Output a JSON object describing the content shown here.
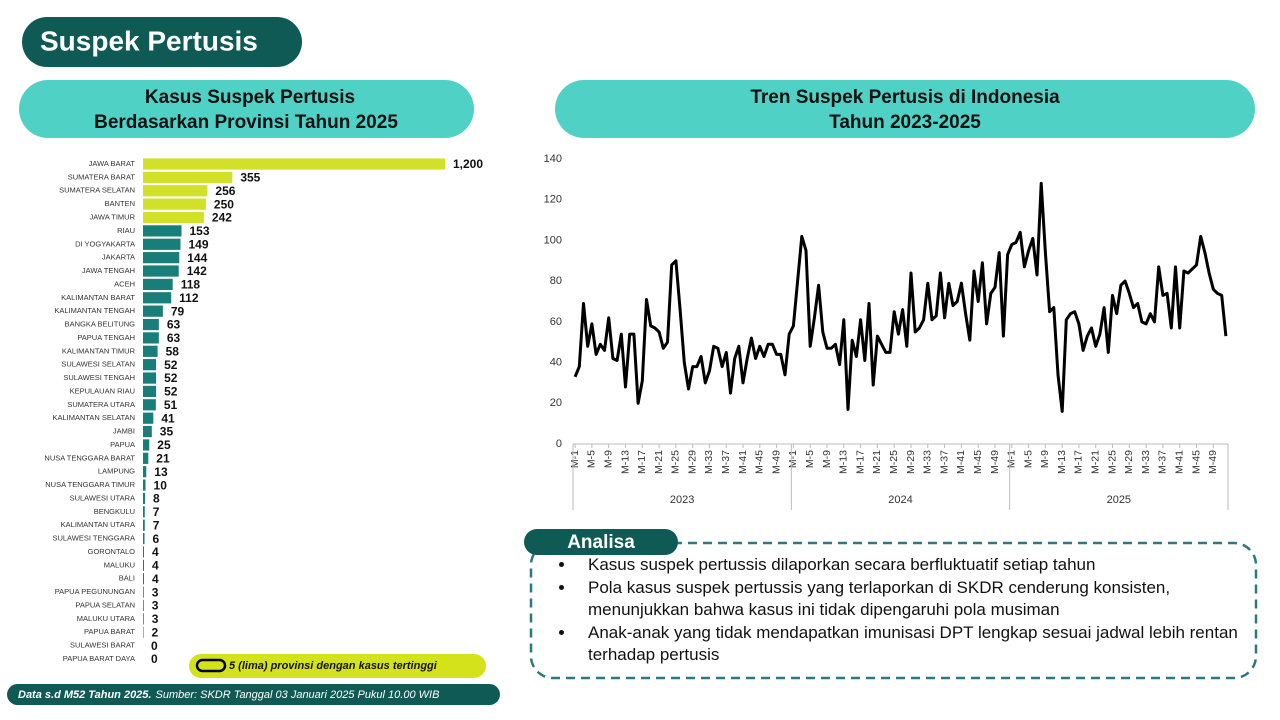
{
  "header": {
    "title": "Suspek Pertusis"
  },
  "chart_data": [
    {
      "type": "bar",
      "orientation": "horizontal",
      "title": "Kasus Suspek Pertusis",
      "subtitle": "Berdasarkan Provinsi Tahun 2025",
      "categories": [
        "JAWA BARAT",
        "SUMATERA BARAT",
        "SUMATERA SELATAN",
        "BANTEN",
        "JAWA TIMUR",
        "RIAU",
        "DI YOGYAKARTA",
        "JAKARTA",
        "JAWA TENGAH",
        "ACEH",
        "KALIMANTAN BARAT",
        "KALIMANTAN TENGAH",
        "BANGKA BELITUNG",
        "PAPUA TENGAH",
        "KALIMANTAN TIMUR",
        "SULAWESI SELATAN",
        "SULAWESI TENGAH",
        "KEPULAUAN RIAU",
        "SUMATERA UTARA",
        "KALIMANTAN SELATAN",
        "JAMBI",
        "PAPUA",
        "NUSA TENGGARA BARAT",
        "LAMPUNG",
        "NUSA TENGGARA TIMUR",
        "SULAWESI UTARA",
        "BENGKULU",
        "KALIMANTAN UTARA",
        "SULAWESI TENGGARA",
        "GORONTALO",
        "MALUKU",
        "BALI",
        "PAPUA PEGUNUNGAN",
        "PAPUA SELATAN",
        "MALUKU UTARA",
        "PAPUA BARAT",
        "SULAWESI BARAT",
        "PAPUA BARAT DAYA"
      ],
      "values": [
        1200,
        355,
        256,
        250,
        242,
        153,
        149,
        144,
        142,
        118,
        112,
        79,
        63,
        63,
        58,
        52,
        52,
        52,
        51,
        41,
        35,
        25,
        21,
        13,
        10,
        8,
        7,
        7,
        6,
        4,
        4,
        4,
        3,
        3,
        3,
        2,
        0,
        0
      ],
      "value_labels": [
        "1,200",
        "355",
        "256",
        "250",
        "242",
        "153",
        "149",
        "144",
        "142",
        "118",
        "112",
        "79",
        "63",
        "63",
        "58",
        "52",
        "52",
        "52",
        "51",
        "41",
        "35",
        "25",
        "21",
        "13",
        "10",
        "8",
        "7",
        "7",
        "6",
        "4",
        "4",
        "4",
        "3",
        "3",
        "3",
        "2",
        "0",
        "0"
      ],
      "colors": [
        "#d2e02a",
        "#d2e02a",
        "#d2e02a",
        "#d2e02a",
        "#d2e02a",
        "#177e79",
        "#177e79",
        "#177e79",
        "#177e79",
        "#177e79",
        "#177e79",
        "#177e79",
        "#177e79",
        "#177e79",
        "#177e79",
        "#177e79",
        "#177e79",
        "#177e79",
        "#177e79",
        "#177e79",
        "#177e79",
        "#177e79",
        "#177e79",
        "#177e79",
        "#177e79",
        "#177e79",
        "#177e79",
        "#177e79",
        "#177e79",
        "#177e79",
        "#177e79",
        "#177e79",
        "#177e79",
        "#177e79",
        "#177e79",
        "#177e79",
        "#177e79",
        "#177e79"
      ],
      "annotation": "5 (lima) provinsi dengan kasus tertinggi"
    },
    {
      "type": "line",
      "title": "Tren Suspek Pertusis di Indonesia",
      "subtitle": "Tahun 2023-2025",
      "color": "#000000",
      "x_groups": [
        "2023",
        "2024",
        "2025"
      ],
      "categories": [
        "M-1",
        null,
        null,
        null,
        "M-5",
        null,
        null,
        null,
        "M-9",
        null,
        null,
        null,
        "M-13",
        null,
        null,
        null,
        "M-17",
        null,
        null,
        null,
        "M-21",
        null,
        null,
        null,
        "M-25",
        null,
        null,
        null,
        "M-29",
        null,
        null,
        null,
        "M-33",
        null,
        null,
        null,
        "M-37",
        null,
        null,
        null,
        "M-41",
        null,
        null,
        null,
        "M-45",
        null,
        null,
        null,
        "M-49",
        null,
        null,
        null,
        "M-1",
        null,
        null,
        null,
        "M-5",
        null,
        null,
        null,
        "M-9",
        null,
        null,
        null,
        "M-13",
        null,
        null,
        null,
        "M-17",
        null,
        null,
        null,
        "M-21",
        null,
        null,
        null,
        "M-25",
        null,
        null,
        null,
        "M-29",
        null,
        null,
        null,
        "M-33",
        null,
        null,
        null,
        "M-37",
        null,
        null,
        null,
        "M-41",
        null,
        null,
        null,
        "M-45",
        null,
        null,
        null,
        "M-49",
        null,
        null,
        null,
        "M-1",
        null,
        null,
        null,
        "M-5",
        null,
        null,
        null,
        "M-9",
        null,
        null,
        null,
        "M-13",
        null,
        null,
        null,
        "M-17",
        null,
        null,
        null,
        "M-21",
        null,
        null,
        null,
        "M-25",
        null,
        null,
        null,
        "M-29",
        null,
        null,
        null,
        "M-33",
        null,
        null,
        null,
        "M-37",
        null,
        null,
        null,
        "M-41",
        null,
        null,
        null,
        "M-45",
        null,
        null,
        null,
        "M-49",
        null,
        null,
        null
      ],
      "values": [
        33,
        38,
        69,
        48,
        59,
        44,
        49,
        46,
        62,
        42,
        41,
        54,
        28,
        54,
        54,
        20,
        31,
        71,
        58,
        57,
        55,
        47,
        50,
        88,
        90,
        66,
        40,
        27,
        38,
        38,
        43,
        30,
        36,
        48,
        47,
        38,
        45,
        25,
        42,
        48,
        30,
        42,
        52,
        42,
        48,
        43,
        49,
        49,
        44,
        44,
        34,
        54,
        58,
        80,
        102,
        95,
        48,
        62,
        78,
        55,
        47,
        47,
        49,
        39,
        61,
        17,
        51,
        43,
        61,
        41,
        69,
        29,
        53,
        49,
        45,
        45,
        65,
        54,
        66,
        48,
        84,
        55,
        57,
        61,
        79,
        61,
        63,
        84,
        62,
        79,
        68,
        70,
        79,
        64,
        51,
        85,
        70,
        89,
        59,
        74,
        77,
        94,
        53,
        93,
        98,
        99,
        104,
        87,
        95,
        101,
        83,
        128,
        94,
        65,
        67,
        34,
        16,
        61,
        64,
        65,
        59,
        46,
        53,
        57,
        48,
        54,
        67,
        45,
        73,
        64,
        78,
        80,
        74,
        67,
        69,
        60,
        59,
        64,
        60,
        87,
        73,
        74,
        57,
        87,
        57,
        85,
        84,
        86,
        88,
        102,
        94,
        84,
        76,
        74,
        73,
        53
      ],
      "ylim": [
        0,
        140
      ],
      "yticks": [
        0,
        20,
        40,
        60,
        80,
        100,
        120,
        140
      ],
      "grid": false
    }
  ],
  "analysis": {
    "title": "Analisa",
    "items": [
      "Kasus suspek pertussis dilaporkan secara berfluktuatif setiap tahun",
      "Pola kasus suspek pertussis yang terlaporkan di SKDR cenderung konsisten, menunjukkan bahwa kasus ini tidak dipengaruhi pola musiman",
      "Anak-anak yang tidak mendapatkan imunisasi DPT lengkap sesuai jadwal lebih rentan terhadap pertusis"
    ]
  },
  "footer": {
    "note": "Data s.d M52 Tahun 2025.",
    "source": "Sumber: SKDR Tanggal 03 Januari 2025 Pukul 10.00 WIB"
  }
}
